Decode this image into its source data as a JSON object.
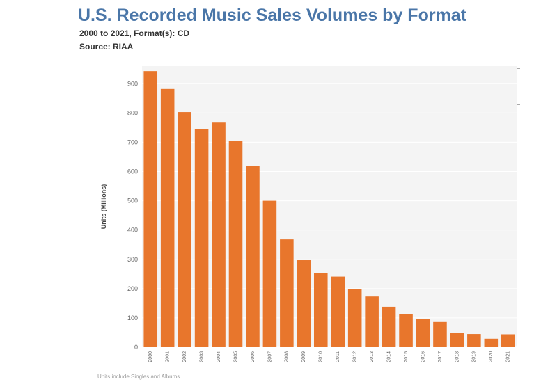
{
  "header": {
    "title": "U.S. Recorded Music Sales Volumes by Format",
    "subtitle": "2000 to 2021, Format(s): CD",
    "source": "Source: RIAA"
  },
  "footnote": "Units include Singles and Albums",
  "colors": {
    "bar": "#e8762c",
    "plot_bg": "#f4f4f4",
    "grid": "#ffffff",
    "title": "#4a76a8",
    "tick": "#666666"
  },
  "chart_data": {
    "type": "bar",
    "title": "U.S. Recorded Music Sales Volumes by Format",
    "subtitle": "2000 to 2021, Format(s): CD",
    "xlabel": "",
    "ylabel": "Units (Millions)",
    "ylim": [
      0,
      960
    ],
    "yticks": [
      0,
      100,
      200,
      300,
      400,
      500,
      600,
      700,
      800,
      900
    ],
    "grid": true,
    "categories": [
      "2000",
      "2001",
      "2002",
      "2003",
      "2004",
      "2005",
      "2006",
      "2007",
      "2008",
      "2009",
      "2010",
      "2011",
      "2012",
      "2013",
      "2014",
      "2015",
      "2016",
      "2017",
      "2018",
      "2019",
      "2020",
      "2021"
    ],
    "values": [
      943,
      882,
      803,
      746,
      767,
      705,
      620,
      500,
      368,
      297,
      253,
      241,
      198,
      173,
      138,
      114,
      97,
      86,
      48,
      45,
      29,
      44
    ]
  }
}
